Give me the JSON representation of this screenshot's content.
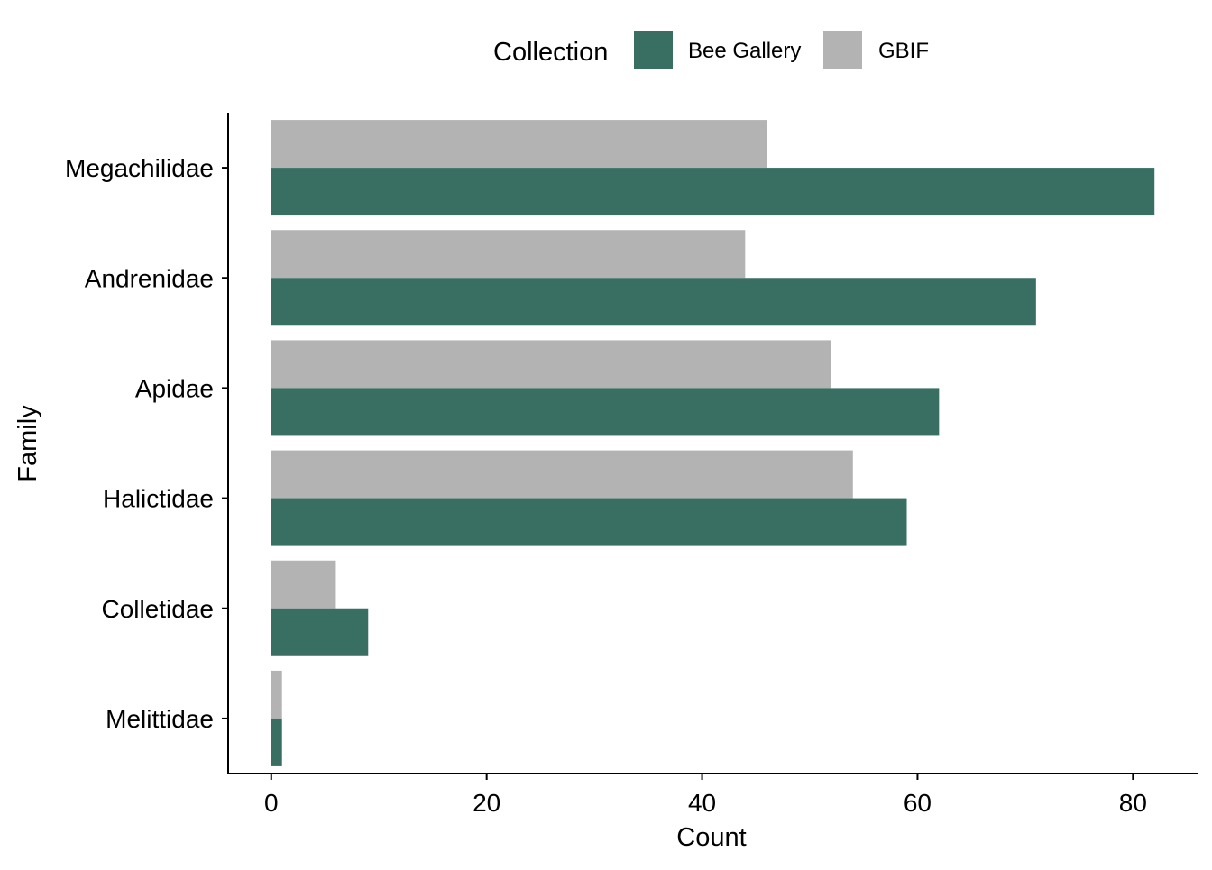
{
  "chart_data": {
    "type": "bar",
    "orientation": "horizontal",
    "categories": [
      "Megachilidae",
      "Andrenidae",
      "Apidae",
      "Halictidae",
      "Colletidae",
      "Melittidae"
    ],
    "series": [
      {
        "name": "Bee Gallery",
        "color": "#386f62",
        "values": [
          82,
          71,
          62,
          59,
          9,
          1
        ]
      },
      {
        "name": "GBIF",
        "color": "#b3b3b3",
        "values": [
          46,
          44,
          52,
          54,
          6,
          1
        ]
      }
    ],
    "xlabel": "Count",
    "ylabel": "Family",
    "xlim": [
      -4,
      86
    ],
    "x_ticks": [
      0,
      20,
      40,
      60,
      80
    ],
    "grid": false,
    "legend": {
      "title": "Collection",
      "placement": "top"
    }
  }
}
